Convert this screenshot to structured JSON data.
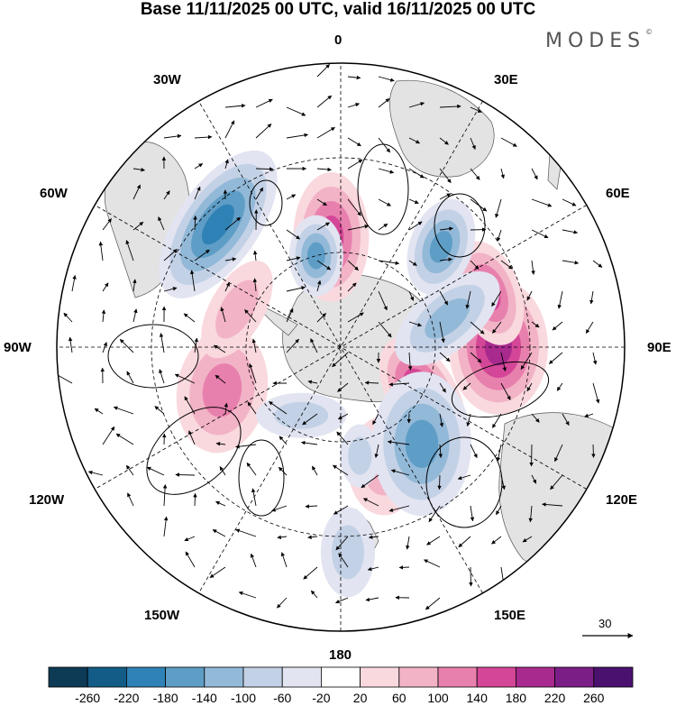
{
  "title": "Base 11/11/2025 00 UTC, valid 16/11/2025 00 UTC",
  "brand": {
    "name": "MODES",
    "mark": "©"
  },
  "map": {
    "projection": "south-polar-stereographic",
    "longitude_labels": {
      "lon_0": "0",
      "lon_30e": "30E",
      "lon_60e": "60E",
      "lon_90e": "90E",
      "lon_120e": "120E",
      "lon_150e": "150E",
      "lon_180": "180",
      "lon_150w": "150W",
      "lon_120w": "120W",
      "lon_90w": "90W",
      "lon_60w": "60W",
      "lon_30w": "30W"
    },
    "reference_vector": "30"
  },
  "colorbar": {
    "labels": [
      "-260",
      "-220",
      "-180",
      "-140",
      "-100",
      "-60",
      "-20",
      "20",
      "60",
      "100",
      "140",
      "180",
      "220",
      "260"
    ],
    "colors": [
      "#0d3a55",
      "#135c87",
      "#2f82b5",
      "#5e9dc6",
      "#93b9d8",
      "#c3d1e6",
      "#e2e4f1",
      "#ffffff",
      "#f9d9de",
      "#f2b3c6",
      "#e880ad",
      "#d44697",
      "#a82a8e",
      "#7b1f86",
      "#4b116f"
    ]
  },
  "colors": {
    "land": "#e6e6e6",
    "ocean": "#ffffff",
    "grid": "#000000"
  },
  "anomalies": [
    {
      "lon": 90,
      "lat": -40,
      "value": 200,
      "rx": 55,
      "ry": 75,
      "rot": 0
    },
    {
      "lon": -5,
      "lat": -55,
      "value": 150,
      "rx": 42,
      "ry": 72,
      "rot": 0
    },
    {
      "lon": 120,
      "lat": -60,
      "value": 170,
      "rx": 38,
      "ry": 70,
      "rot": -30
    },
    {
      "lon": 70,
      "lat": -40,
      "value": 160,
      "rx": 35,
      "ry": 60,
      "rot": -20
    },
    {
      "lon": 160,
      "lat": -50,
      "value": 60,
      "rx": 40,
      "ry": 55,
      "rot": 0
    },
    {
      "lon": -110,
      "lat": -50,
      "value": 110,
      "rx": 50,
      "ry": 70,
      "rot": 10
    },
    {
      "lon": -45,
      "lat": -35,
      "value": -200,
      "rx": 45,
      "ry": 95,
      "rot": 35
    },
    {
      "lon": -15,
      "lat": -60,
      "value": -150,
      "rx": 30,
      "ry": 45,
      "rot": 0
    },
    {
      "lon": 45,
      "lat": -45,
      "value": -140,
      "rx": 35,
      "ry": 55,
      "rot": 20
    },
    {
      "lon": 75,
      "lat": -55,
      "value": -100,
      "rx": 35,
      "ry": 70,
      "rot": 50
    },
    {
      "lon": 140,
      "lat": -50,
      "value": -150,
      "rx": 55,
      "ry": 80,
      "rot": 0
    },
    {
      "lon": 170,
      "lat": -55,
      "value": -70,
      "rx": 22,
      "ry": 35,
      "rot": 0
    },
    {
      "lon": 178,
      "lat": -25,
      "value": -80,
      "rx": 30,
      "ry": 50,
      "rot": 0
    },
    {
      "lon": -70,
      "lat": -55,
      "value": 70,
      "rx": 30,
      "ry": 60,
      "rot": 30
    },
    {
      "lon": -150,
      "lat": -65,
      "value": -50,
      "rx": 50,
      "ry": 25,
      "rot": 0
    }
  ]
}
